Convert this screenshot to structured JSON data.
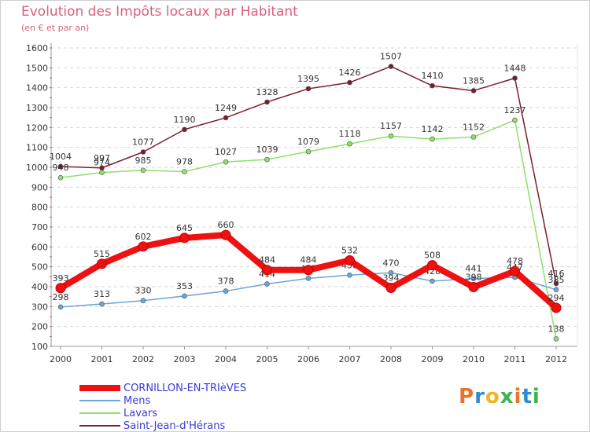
{
  "title": "Evolution des Impôts locaux par Habitant",
  "subtitle": "(en € et par an)",
  "brand": {
    "text": "Proxiti",
    "colors": [
      "#e8732a",
      "#2e8bd0",
      "#f3b41b",
      "#3bb54a",
      "#e8732a",
      "#2e8bd0",
      "#3bb54a"
    ]
  },
  "chart_data": {
    "type": "line",
    "title": "Evolution des Impôts locaux par Habitant",
    "ylabel": "(en € et par an)",
    "xlabel": "",
    "ylim": [
      100,
      1600
    ],
    "yticks": [
      100,
      200,
      300,
      400,
      500,
      600,
      700,
      800,
      900,
      1000,
      1100,
      1200,
      1300,
      1400,
      1500,
      1600
    ],
    "grid": "horizontal dashed",
    "legend_position": "bottom-left",
    "x": [
      "2000",
      "2001",
      "2002",
      "2003",
      "2004",
      "2005",
      "2006",
      "2007",
      "2008",
      "2009",
      "2010",
      "2011",
      "2012"
    ],
    "series": [
      {
        "name": "Saint-Jean-d'Hérans",
        "color": "#7a1e2e",
        "values": [
          1004,
          997,
          1077,
          1190,
          1249,
          1328,
          1395,
          1426,
          1507,
          1410,
          1385,
          1448,
          416
        ]
      },
      {
        "name": "Lavars",
        "color": "#8ee06a",
        "values": [
          948,
          974,
          985,
          978,
          1027,
          1039,
          1079,
          1118,
          1157,
          1142,
          1152,
          1237,
          138
        ]
      },
      {
        "name": "Mens",
        "color": "#6aa6d8",
        "values": [
          298,
          313,
          330,
          353,
          378,
          414,
          442,
          458,
          470,
          428,
          441,
          447,
          385
        ]
      },
      {
        "name": "CORNILLON-EN-TRIèVES",
        "color": "#ee1111",
        "values": [
          393,
          515,
          602,
          645,
          660,
          484,
          484,
          532,
          394,
          508,
          398,
          478,
          294
        ]
      }
    ],
    "legend": [
      "CORNILLON-EN-TRIèVES",
      "Mens",
      "Lavars",
      "Saint-Jean-d'Hérans"
    ]
  }
}
